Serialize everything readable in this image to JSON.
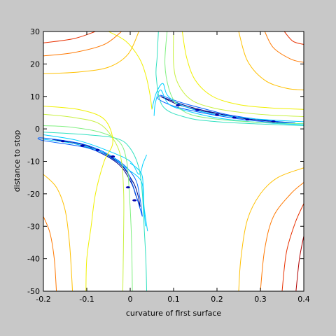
{
  "chart_data": {
    "type": "contour",
    "title": "",
    "xlabel": "curvature of first surface",
    "ylabel": "distance to stop",
    "xlim": [
      -0.2,
      0.4
    ],
    "ylim": [
      -50,
      30
    ],
    "xticks": [
      -0.2,
      -0.1,
      0,
      0.1,
      0.2,
      0.3,
      0.4
    ],
    "yticks": [
      -50,
      -40,
      -30,
      -20,
      -10,
      0,
      10,
      20,
      30
    ],
    "xtick_labels": [
      "-0.2",
      "-0.1",
      "0",
      "0.1",
      "0.2",
      "0.3",
      "0.4"
    ],
    "ytick_labels": [
      "-50",
      "-40",
      "-30",
      "-20",
      "-10",
      "0",
      "10",
      "20",
      "30"
    ],
    "grid": false,
    "colormap": "jet",
    "background": "#c8c8c8",
    "plot_background": "#ffffff",
    "saddle_point": [
      0.05,
      0
    ],
    "contours": [
      {
        "level": 1,
        "color": "#000080",
        "segments": [
          [
            [
              0.07,
              10
            ],
            [
              0.12,
              7.5
            ],
            [
              0.16,
              6
            ],
            [
              0.2,
              4.8
            ],
            [
              0.24,
              3.6
            ],
            [
              0.28,
              2.9
            ],
            [
              0.33,
              2.3
            ],
            [
              0.36,
              2
            ],
            [
              0.31,
              2.5
            ],
            [
              0.26,
              3.3
            ],
            [
              0.21,
              4.5
            ],
            [
              0.16,
              5.7
            ],
            [
              0.11,
              7.5
            ],
            [
              0.07,
              10
            ]
          ],
          [
            [
              0.023,
              -24
            ],
            [
              0.017,
              -20
            ],
            [
              0.005,
              -16
            ],
            [
              -0.03,
              -10
            ],
            [
              -0.1,
              -5.2
            ],
            [
              -0.18,
              -3.2
            ],
            [
              -0.1,
              -5.6
            ],
            [
              -0.03,
              -10.5
            ],
            [
              0.002,
              -16.5
            ],
            [
              0.013,
              -20.5
            ],
            [
              0.023,
              -24
            ]
          ]
        ]
      },
      {
        "level": 2,
        "color": "#0060ff",
        "segments": [
          [
            [
              0.07,
              10.4
            ],
            [
              0.12,
              8
            ],
            [
              0.17,
              6.2
            ],
            [
              0.22,
              4.5
            ],
            [
              0.27,
              3.4
            ],
            [
              0.33,
              2.4
            ],
            [
              0.38,
              1.8
            ],
            [
              0.32,
              2.1
            ],
            [
              0.26,
              2.9
            ],
            [
              0.21,
              3.9
            ],
            [
              0.15,
              5.4
            ],
            [
              0.1,
              7
            ],
            [
              0.065,
              9.2
            ],
            [
              0.07,
              10.4
            ]
          ],
          [
            [
              0.028,
              -27
            ],
            [
              0.022,
              -21
            ],
            [
              0.01,
              -15
            ],
            [
              -0.03,
              -9.5
            ],
            [
              -0.1,
              -5
            ],
            [
              -0.2,
              -2.8
            ],
            [
              -0.2,
              -3.6
            ],
            [
              -0.1,
              -5.8
            ],
            [
              -0.04,
              -9.3
            ],
            [
              -0.01,
              -12.5
            ],
            [
              0.005,
              -17
            ],
            [
              0.017,
              -22
            ],
            [
              0.028,
              -27
            ]
          ]
        ]
      },
      {
        "level": 3,
        "color": "#00d0ff",
        "segments": [
          [
            [
              0.055,
              4
            ],
            [
              0.058,
              8
            ],
            [
              0.07,
              12
            ],
            [
              0.09,
              7.5
            ],
            [
              0.14,
              5.2
            ],
            [
              0.2,
              3.4
            ],
            [
              0.27,
              2.3
            ],
            [
              0.33,
              1.7
            ],
            [
              0.4,
              1.3
            ]
          ],
          [
            [
              0.4,
              2.2
            ],
            [
              0.33,
              2.7
            ],
            [
              0.27,
              3.3
            ],
            [
              0.2,
              4.4
            ],
            [
              0.15,
              5.8
            ],
            [
              0.11,
              7.8
            ],
            [
              0.085,
              10.5
            ],
            [
              0.075,
              14
            ],
            [
              0.06,
              11
            ],
            [
              0.05,
              6
            ]
          ],
          [
            [
              0.035,
              -30
            ],
            [
              0.03,
              -22
            ],
            [
              0.025,
              -16
            ],
            [
              -0.01,
              -12
            ],
            [
              -0.05,
              -8
            ],
            [
              -0.12,
              -4.8
            ],
            [
              -0.2,
              -3.2
            ]
          ],
          [
            [
              -0.2,
              -1.8
            ],
            [
              -0.12,
              -3.6
            ],
            [
              -0.05,
              -6.8
            ],
            [
              0,
              -10
            ],
            [
              0.02,
              -14
            ],
            [
              0.03,
              -10.5
            ],
            [
              0.038,
              -8
            ]
          ],
          [
            [
              0.04,
              -31.5
            ],
            [
              0.032,
              -24
            ],
            [
              0.03,
              -18
            ],
            [
              0.025,
              -13.5
            ],
            [
              0,
              -10.5
            ]
          ]
        ]
      },
      {
        "level": 4,
        "color": "#30e0c0",
        "segments": [
          [
            [
              0.065,
              30
            ],
            [
              0.062,
              22
            ],
            [
              0.06,
              16
            ],
            [
              0.075,
              7
            ],
            [
              0.13,
              3.5
            ],
            [
              0.2,
              2.2
            ],
            [
              0.3,
              1.5
            ],
            [
              0.4,
              1
            ]
          ],
          [
            [
              -0.2,
              -1
            ],
            [
              -0.1,
              -1.8
            ],
            [
              -0.03,
              -3
            ],
            [
              0,
              -6
            ],
            [
              0.02,
              -12
            ],
            [
              0.028,
              -20
            ],
            [
              0.032,
              -30
            ],
            [
              0.036,
              -40
            ],
            [
              0.038,
              -50
            ]
          ]
        ]
      },
      {
        "level": 5,
        "color": "#80f080",
        "segments": [
          [
            [
              0.085,
              30
            ],
            [
              0.08,
              20
            ],
            [
              0.09,
              12
            ],
            [
              0.11,
              7
            ],
            [
              0.14,
              4.4
            ],
            [
              0.2,
              3
            ],
            [
              0.3,
              2
            ],
            [
              0.4,
              1.6
            ]
          ],
          [
            [
              -0.2,
              1
            ],
            [
              -0.14,
              0.6
            ],
            [
              -0.07,
              -1
            ],
            [
              -0.025,
              -4
            ],
            [
              -0.008,
              -10
            ],
            [
              -0.002,
              -20
            ],
            [
              0.002,
              -30
            ],
            [
              0.004,
              -40
            ],
            [
              0.005,
              -50
            ]
          ]
        ]
      },
      {
        "level": 6,
        "color": "#c8f040",
        "segments": [
          [
            [
              0.1,
              30
            ],
            [
              0.1,
              20
            ],
            [
              0.11,
              14
            ],
            [
              0.14,
              9
            ],
            [
              0.19,
              6.5
            ],
            [
              0.26,
              5
            ],
            [
              0.33,
              4.2
            ],
            [
              0.4,
              3.8
            ]
          ],
          [
            [
              -0.2,
              4.5
            ],
            [
              -0.13,
              3.5
            ],
            [
              -0.07,
              1.5
            ],
            [
              -0.035,
              -4
            ],
            [
              -0.02,
              -10
            ],
            [
              -0.015,
              -20
            ],
            [
              -0.015,
              -30
            ],
            [
              -0.016,
              -40
            ],
            [
              -0.017,
              -50
            ]
          ]
        ]
      },
      {
        "level": 7,
        "color": "#f0f000",
        "segments": [
          [
            [
              -0.05,
              30
            ],
            [
              -0.01,
              27
            ],
            [
              0.02,
              22
            ],
            [
              0.035,
              17
            ],
            [
              0.045,
              11
            ],
            [
              0.05,
              6
            ]
          ],
          [
            [
              0.12,
              30
            ],
            [
              0.13,
              22
            ],
            [
              0.15,
              15
            ],
            [
              0.19,
              10
            ],
            [
              0.25,
              7.5
            ],
            [
              0.32,
              6.5
            ],
            [
              0.4,
              6
            ]
          ],
          [
            [
              -0.2,
              7
            ],
            [
              -0.12,
              6
            ],
            [
              -0.06,
              3
            ],
            [
              -0.04,
              -4
            ],
            [
              -0.06,
              -10
            ],
            [
              -0.08,
              -20
            ],
            [
              -0.09,
              -30
            ],
            [
              -0.1,
              -40
            ],
            [
              -0.102,
              -50
            ]
          ]
        ]
      },
      {
        "level": 8,
        "color": "#ffc000",
        "segments": [
          [
            [
              -0.2,
              17
            ],
            [
              -0.12,
              17.5
            ],
            [
              -0.05,
              19
            ],
            [
              -0.005,
              23
            ],
            [
              0.02,
              30
            ]
          ],
          [
            [
              0.25,
              30
            ],
            [
              0.27,
              21
            ],
            [
              0.31,
              15
            ],
            [
              0.36,
              12.5
            ],
            [
              0.4,
              12
            ]
          ],
          [
            [
              -0.2,
              -14
            ],
            [
              -0.17,
              -18
            ],
            [
              -0.15,
              -25
            ],
            [
              -0.14,
              -35
            ],
            [
              -0.135,
              -45
            ],
            [
              -0.133,
              -50
            ]
          ],
          [
            [
              0.4,
              -12
            ],
            [
              0.34,
              -15
            ],
            [
              0.3,
              -20
            ],
            [
              0.27,
              -28
            ],
            [
              0.255,
              -40
            ],
            [
              0.25,
              -50
            ]
          ]
        ]
      },
      {
        "level": 9,
        "color": "#ff7800",
        "segments": [
          [
            [
              -0.2,
              22.5
            ],
            [
              -0.13,
              23.5
            ],
            [
              -0.06,
              26
            ],
            [
              -0.02,
              30
            ]
          ],
          [
            [
              0.31,
              30
            ],
            [
              0.33,
              25
            ],
            [
              0.37,
              21.5
            ],
            [
              0.4,
              20.5
            ]
          ],
          [
            [
              -0.2,
              -27
            ],
            [
              -0.185,
              -32
            ],
            [
              -0.175,
              -40
            ],
            [
              -0.17,
              -50
            ]
          ],
          [
            [
              0.4,
              -16.5
            ],
            [
              0.37,
              -20
            ],
            [
              0.33,
              -27
            ],
            [
              0.31,
              -37
            ],
            [
              0.3,
              -50
            ]
          ]
        ]
      },
      {
        "level": 10,
        "color": "#e83000",
        "segments": [
          [
            [
              -0.2,
              26.5
            ],
            [
              -0.13,
              27.8
            ],
            [
              -0.08,
              30
            ]
          ],
          [
            [
              0.355,
              30
            ],
            [
              0.375,
              27
            ],
            [
              0.4,
              26
            ]
          ],
          [
            [
              0.4,
              -23
            ],
            [
              0.38,
              -29
            ],
            [
              0.36,
              -38
            ],
            [
              0.35,
              -50
            ]
          ]
        ]
      },
      {
        "level": 11,
        "color": "#b00000",
        "segments": [
          [
            [
              0.4,
              -33
            ],
            [
              0.39,
              -40
            ],
            [
              0.382,
              -50
            ]
          ]
        ]
      }
    ],
    "markers": {
      "color": "#0000b0",
      "points": [
        [
          0.11,
          7.3
        ],
        [
          0.155,
          5.8
        ],
        [
          0.2,
          4.3
        ],
        [
          0.24,
          3.5
        ],
        [
          0.27,
          2.9
        ],
        [
          0.33,
          2.3
        ],
        [
          -0.155,
          -3.8
        ],
        [
          -0.11,
          -5.2
        ],
        [
          -0.075,
          -6.5
        ],
        [
          -0.04,
          -8.5
        ],
        [
          -0.005,
          -18
        ],
        [
          0.01,
          -22
        ]
      ]
    }
  }
}
